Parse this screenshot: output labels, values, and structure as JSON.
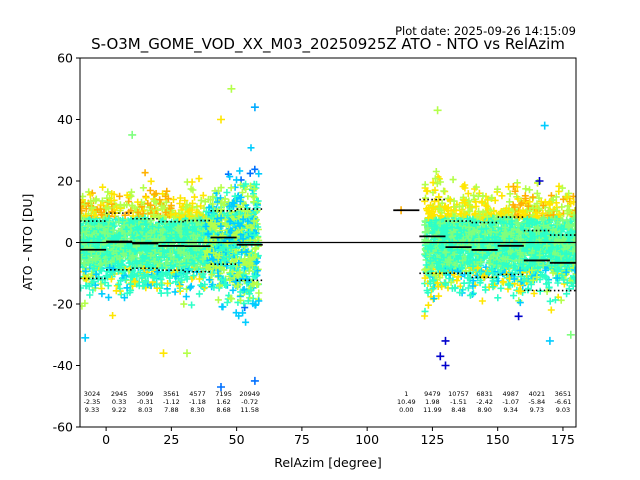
{
  "chart_data": {
    "type": "scatter",
    "plot_date": "Plot date: 2025-09-26 14:15:09",
    "title": "S-O3M_GOME_VOD_XX_M03_20250925Z ATO - NTO vs RelAzim",
    "xlabel": "RelAzim [degree]",
    "ylabel": "ATO - NTO [DU]",
    "xlim": [
      -10,
      180
    ],
    "ylim": [
      -60,
      60
    ],
    "xticks": [
      0,
      25,
      50,
      75,
      100,
      125,
      150,
      175
    ],
    "yticks": [
      -60,
      -40,
      -20,
      0,
      20,
      40,
      60
    ],
    "zero_line": 0,
    "bin_width": 10,
    "bins": [
      {
        "x": 5,
        "count": "2945",
        "mean": "0.33",
        "std": "9.22"
      },
      {
        "x": 15,
        "count": "3099",
        "mean": "-0.31",
        "std": "8.03"
      },
      {
        "x": 25,
        "count": "3561",
        "mean": "-1.12",
        "std": "7.88"
      },
      {
        "x": 35,
        "count": "4577",
        "mean": "-1.18",
        "std": "8.30"
      },
      {
        "x": 45,
        "count": "7195",
        "mean": "1.62",
        "std": "8.68"
      },
      {
        "x": 55,
        "count": "20949",
        "mean": "-0.72",
        "std": "11.58"
      },
      {
        "x": 115,
        "count": "1",
        "mean": "10.49",
        "std": "0.00"
      },
      {
        "x": 125,
        "count": "9479",
        "mean": "1.98",
        "std": "11.99"
      },
      {
        "x": 135,
        "count": "10757",
        "mean": "-1.51",
        "std": "8.48"
      },
      {
        "x": 145,
        "count": "6831",
        "mean": "-2.42",
        "std": "8.90"
      },
      {
        "x": 155,
        "count": "4987",
        "mean": "-1.07",
        "std": "9.34"
      },
      {
        "x": 165,
        "count": "4021",
        "mean": "-5.84",
        "std": "9.73"
      },
      {
        "x": 175,
        "count": "3651",
        "mean": "-6.61",
        "std": "9.03"
      }
    ],
    "partial_bin": {
      "x": -5,
      "count": "3024",
      "mean": "-2.35",
      "std": "9.33"
    },
    "scatter_clusters": [
      {
        "x_range": [
          -10,
          58.5
        ],
        "y_center": 0,
        "y_spread": 22
      },
      {
        "x_range": [
          122,
          180
        ],
        "y_center": 0,
        "y_spread": 22
      }
    ],
    "outliers": [
      {
        "x": 48,
        "y": 50,
        "color": "#b4ff4a"
      },
      {
        "x": 44,
        "y": 40,
        "color": "#ffe600"
      },
      {
        "x": 57,
        "y": 44,
        "color": "#00aaff"
      },
      {
        "x": 57,
        "y": -45,
        "color": "#0070ff"
      },
      {
        "x": 44,
        "y": -47,
        "color": "#0070ff"
      },
      {
        "x": 113,
        "y": 10.5,
        "color": "#ffb000"
      },
      {
        "x": 130,
        "y": -40,
        "color": "#0000cc"
      },
      {
        "x": 128,
        "y": -37,
        "color": "#0000cc"
      },
      {
        "x": 130,
        "y": -32,
        "color": "#0000cc"
      },
      {
        "x": 168,
        "y": 38,
        "color": "#00ccff"
      },
      {
        "x": 166,
        "y": 20,
        "color": "#0000cc"
      },
      {
        "x": 127,
        "y": 43,
        "color": "#b4ff4a"
      },
      {
        "x": 10,
        "y": 35,
        "color": "#7fff7f"
      },
      {
        "x": -8,
        "y": -31,
        "color": "#00ccff"
      },
      {
        "x": 22,
        "y": -36,
        "color": "#ffe600"
      },
      {
        "x": 31,
        "y": -36,
        "color": "#b4ff4a"
      },
      {
        "x": 158,
        "y": -24,
        "color": "#0000cc"
      },
      {
        "x": 170,
        "y": -32,
        "color": "#00ccff"
      },
      {
        "x": 178,
        "y": -30,
        "color": "#7fff7f"
      }
    ],
    "colors": {
      "cyan": "#00ccff",
      "aqua": "#2cffc8",
      "green": "#7fff7f",
      "lime": "#b4ff4a",
      "yellow": "#ffe600",
      "orange": "#ffb000",
      "blue": "#0070ff",
      "navy": "#0000cc"
    }
  }
}
